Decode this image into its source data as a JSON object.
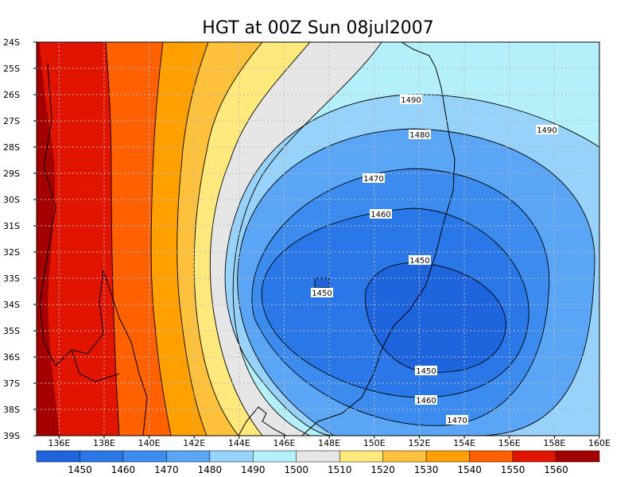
{
  "title": "HGT at 00Z Sun 08jul2007",
  "lat_labels": [
    "24S",
    "25S",
    "26S",
    "27S",
    "28S",
    "29S",
    "30S",
    "31S",
    "32S",
    "33S",
    "34S",
    "35S",
    "36S",
    "37S",
    "38S",
    "39S"
  ],
  "lon_labels": [
    "136E",
    "138E",
    "140E",
    "142E",
    "144E",
    "146E",
    "148E",
    "150E",
    "152E",
    "154E",
    "156E",
    "158E",
    "160E"
  ],
  "contour_labels": [
    "1490",
    "1490",
    "1480",
    "1470",
    "1460",
    "1450",
    "1450",
    "1450",
    "1460",
    "1470"
  ],
  "colorbar": {
    "colors": [
      "#1e64dc",
      "#2a78e8",
      "#3c8cf0",
      "#5aa5f5",
      "#96d2fa",
      "#b4f0fa",
      "#e6e6e6",
      "#ffe87c",
      "#ffc03c",
      "#ffa000",
      "#ff6000",
      "#e11400",
      "#a50000"
    ],
    "labels": [
      "1450",
      "1460",
      "1470",
      "1480",
      "1490",
      "1500",
      "1510",
      "1520",
      "1530",
      "1540",
      "1550",
      "1560"
    ]
  }
}
